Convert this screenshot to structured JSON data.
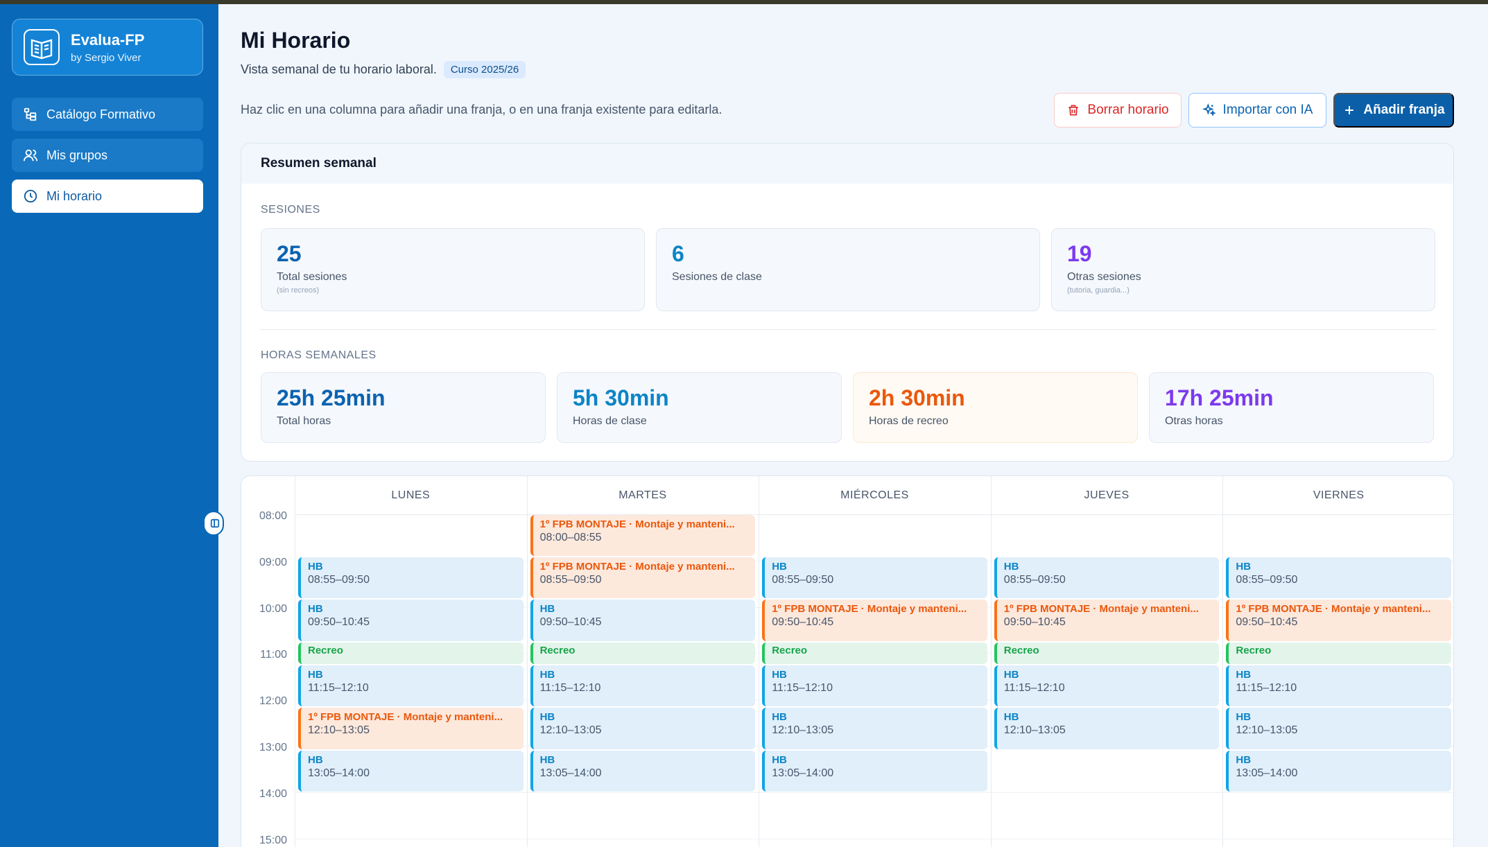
{
  "brand": {
    "name": "Evalua-FP",
    "byline": "by Sergio Viver"
  },
  "nav": [
    {
      "label": "Catálogo Formativo",
      "icon": "tree-icon",
      "active": false
    },
    {
      "label": "Mis grupos",
      "icon": "users-icon",
      "active": false
    },
    {
      "label": "Mi horario",
      "icon": "clock-icon",
      "active": true
    }
  ],
  "header": {
    "title": "Mi Horario",
    "subtitle": "Vista semanal de tu horario laboral.",
    "badge": "Curso 2025/26",
    "hint": "Haz clic en una columna para añadir una franja, o en una franja existente para editarla."
  },
  "actions": {
    "delete_label": "Borrar horario",
    "import_label": "Importar con IA",
    "add_label": "Añadir franja"
  },
  "summary": {
    "title": "Resumen semanal",
    "sessions_label": "SESIONES",
    "sessions": [
      {
        "value": "25",
        "label": "Total sesiones",
        "note": "(sin recreos)",
        "color": "#0b63b0"
      },
      {
        "value": "6",
        "label": "Sesiones de clase",
        "note": "",
        "color": "#0b84c6"
      },
      {
        "value": "19",
        "label": "Otras sesiones",
        "note": "(tutoria, guardia...)",
        "color": "#7c3aed"
      }
    ],
    "hours_label": "HORAS SEMANALES",
    "hours": [
      {
        "value": "25h 25min",
        "label": "Total horas",
        "color": "#0b63b0",
        "bg": "#f5f8fc",
        "border": "#e2e8f0"
      },
      {
        "value": "5h 30min",
        "label": "Horas de clase",
        "color": "#0b84c6",
        "bg": "#f5f8fc",
        "border": "#e2e8f0"
      },
      {
        "value": "2h 30min",
        "label": "Horas de recreo",
        "color": "#ea580c",
        "bg": "#fffaf3",
        "border": "#fde7cf"
      },
      {
        "value": "17h 25min",
        "label": "Otras horas",
        "color": "#7c3aed",
        "bg": "#f5f8fc",
        "border": "#e2e8f0"
      }
    ]
  },
  "calendar": {
    "days": [
      "LUNES",
      "MARTES",
      "MIÉRCOLES",
      "JUEVES",
      "VIERNES"
    ],
    "hours": [
      "08:00",
      "09:00",
      "10:00",
      "11:00",
      "12:00",
      "13:00",
      "14:00",
      "15:00"
    ],
    "slots": [
      {
        "day": 0,
        "start": "08:55",
        "end": "09:50",
        "title": "HB",
        "time": "08:55–09:50",
        "kind": "hb"
      },
      {
        "day": 0,
        "start": "09:50",
        "end": "10:45",
        "title": "HB",
        "time": "09:50–10:45",
        "kind": "hb"
      },
      {
        "day": 0,
        "start": "10:45",
        "end": "11:15",
        "title": "Recreo",
        "time": "",
        "kind": "rec"
      },
      {
        "day": 0,
        "start": "11:15",
        "end": "12:10",
        "title": "HB",
        "time": "11:15–12:10",
        "kind": "hb"
      },
      {
        "day": 0,
        "start": "12:10",
        "end": "13:05",
        "title": "1º FPB MONTAJE · Montaje y manteni...",
        "time": "12:10–13:05",
        "kind": "fpb"
      },
      {
        "day": 0,
        "start": "13:05",
        "end": "14:00",
        "title": "HB",
        "time": "13:05–14:00",
        "kind": "hb"
      },
      {
        "day": 1,
        "start": "08:00",
        "end": "08:55",
        "title": "1º FPB MONTAJE · Montaje y manteni...",
        "time": "08:00–08:55",
        "kind": "fpb"
      },
      {
        "day": 1,
        "start": "08:55",
        "end": "09:50",
        "title": "1º FPB MONTAJE · Montaje y manteni...",
        "time": "08:55–09:50",
        "kind": "fpb"
      },
      {
        "day": 1,
        "start": "09:50",
        "end": "10:45",
        "title": "HB",
        "time": "09:50–10:45",
        "kind": "hb"
      },
      {
        "day": 1,
        "start": "10:45",
        "end": "11:15",
        "title": "Recreo",
        "time": "",
        "kind": "rec"
      },
      {
        "day": 1,
        "start": "11:15",
        "end": "12:10",
        "title": "HB",
        "time": "11:15–12:10",
        "kind": "hb"
      },
      {
        "day": 1,
        "start": "12:10",
        "end": "13:05",
        "title": "HB",
        "time": "12:10–13:05",
        "kind": "hb"
      },
      {
        "day": 1,
        "start": "13:05",
        "end": "14:00",
        "title": "HB",
        "time": "13:05–14:00",
        "kind": "hb"
      },
      {
        "day": 2,
        "start": "08:55",
        "end": "09:50",
        "title": "HB",
        "time": "08:55–09:50",
        "kind": "hb"
      },
      {
        "day": 2,
        "start": "09:50",
        "end": "10:45",
        "title": "1º FPB MONTAJE · Montaje y manteni...",
        "time": "09:50–10:45",
        "kind": "fpb"
      },
      {
        "day": 2,
        "start": "10:45",
        "end": "11:15",
        "title": "Recreo",
        "time": "",
        "kind": "rec"
      },
      {
        "day": 2,
        "start": "11:15",
        "end": "12:10",
        "title": "HB",
        "time": "11:15–12:10",
        "kind": "hb"
      },
      {
        "day": 2,
        "start": "12:10",
        "end": "13:05",
        "title": "HB",
        "time": "12:10–13:05",
        "kind": "hb"
      },
      {
        "day": 2,
        "start": "13:05",
        "end": "14:00",
        "title": "HB",
        "time": "13:05–14:00",
        "kind": "hb"
      },
      {
        "day": 3,
        "start": "08:55",
        "end": "09:50",
        "title": "HB",
        "time": "08:55–09:50",
        "kind": "hb"
      },
      {
        "day": 3,
        "start": "09:50",
        "end": "10:45",
        "title": "1º FPB MONTAJE · Montaje y manteni...",
        "time": "09:50–10:45",
        "kind": "fpb"
      },
      {
        "day": 3,
        "start": "10:45",
        "end": "11:15",
        "title": "Recreo",
        "time": "",
        "kind": "rec"
      },
      {
        "day": 3,
        "start": "11:15",
        "end": "12:10",
        "title": "HB",
        "time": "11:15–12:10",
        "kind": "hb"
      },
      {
        "day": 3,
        "start": "12:10",
        "end": "13:05",
        "title": "HB",
        "time": "12:10–13:05",
        "kind": "hb"
      },
      {
        "day": 4,
        "start": "08:55",
        "end": "09:50",
        "title": "HB",
        "time": "08:55–09:50",
        "kind": "hb"
      },
      {
        "day": 4,
        "start": "09:50",
        "end": "10:45",
        "title": "1º FPB MONTAJE · Montaje y manteni...",
        "time": "09:50–10:45",
        "kind": "fpb"
      },
      {
        "day": 4,
        "start": "10:45",
        "end": "11:15",
        "title": "Recreo",
        "time": "",
        "kind": "rec"
      },
      {
        "day": 4,
        "start": "11:15",
        "end": "12:10",
        "title": "HB",
        "time": "11:15–12:10",
        "kind": "hb"
      },
      {
        "day": 4,
        "start": "12:10",
        "end": "13:05",
        "title": "HB",
        "time": "12:10–13:05",
        "kind": "hb"
      },
      {
        "day": 4,
        "start": "13:05",
        "end": "14:00",
        "title": "HB",
        "time": "13:05–14:00",
        "kind": "hb"
      }
    ]
  }
}
